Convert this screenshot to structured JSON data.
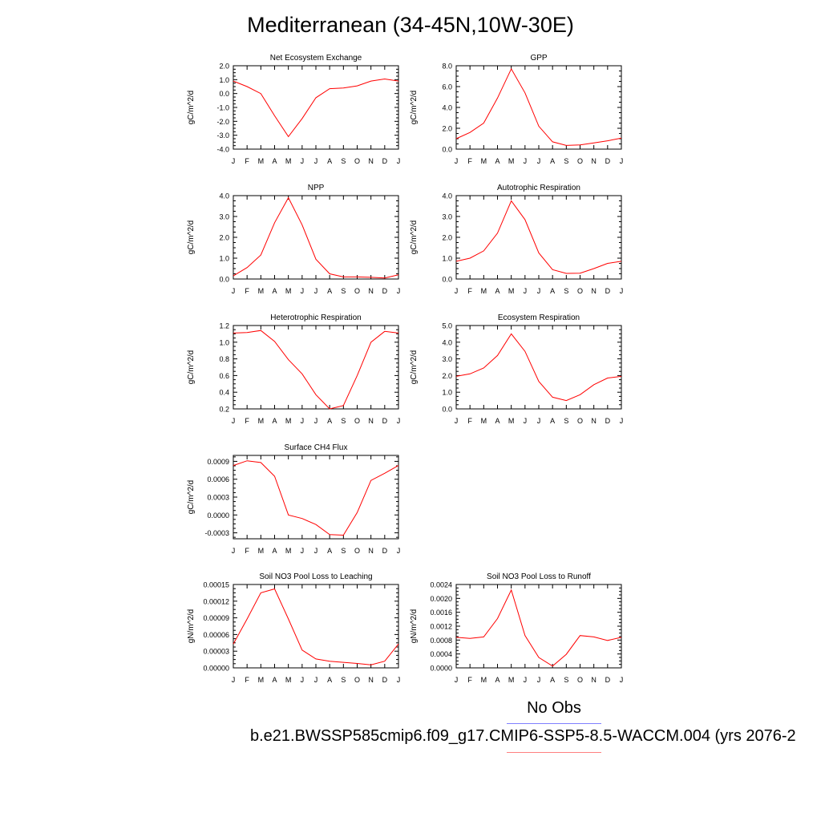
{
  "figure": {
    "title": "Mediterranean (34-45N,10W-30E)",
    "legend": {
      "obs_label": "No Obs",
      "case_label": "b.e21.BWSSP585cmip6.f09_g17.CMIP6-SSP5-8.5-WACCM.004 (yrs 2076-2",
      "obs_color": "#8080ff",
      "case_color": "#ff8080"
    }
  },
  "chart_data": [
    {
      "type": "line",
      "title": "Net Ecosystem Exchange",
      "ylabel": "gC/m^2/d",
      "x": [
        "J",
        "F",
        "M",
        "A",
        "M",
        "J",
        "J",
        "A",
        "S",
        "O",
        "N",
        "D",
        "J"
      ],
      "ylim": [
        -4.0,
        2.0
      ],
      "yticks": [
        "-4.0",
        "-3.0",
        "-2.0",
        "-1.0",
        "0.0",
        "1.0",
        "2.0"
      ],
      "series": [
        {
          "color": "#ff0000",
          "values": [
            0.9,
            0.5,
            0.0,
            -1.6,
            -3.1,
            -1.8,
            -0.3,
            0.35,
            0.4,
            0.55,
            0.9,
            1.05,
            0.9
          ]
        }
      ]
    },
    {
      "type": "line",
      "title": "GPP",
      "ylabel": "gC/m^2/d",
      "x": [
        "J",
        "F",
        "M",
        "A",
        "M",
        "J",
        "J",
        "A",
        "S",
        "O",
        "N",
        "D",
        "J"
      ],
      "ylim": [
        0.0,
        8.0
      ],
      "yticks": [
        "0.0",
        "2.0",
        "4.0",
        "6.0",
        "8.0"
      ],
      "series": [
        {
          "color": "#ff0000",
          "values": [
            1.0,
            1.6,
            2.5,
            4.9,
            7.7,
            5.4,
            2.2,
            0.7,
            0.35,
            0.4,
            0.6,
            0.8,
            1.05
          ]
        }
      ]
    },
    {
      "type": "line",
      "title": "NPP",
      "ylabel": "gC/m^2/d",
      "x": [
        "J",
        "F",
        "M",
        "A",
        "M",
        "J",
        "J",
        "A",
        "S",
        "O",
        "N",
        "D",
        "J"
      ],
      "ylim": [
        0.0,
        4.0
      ],
      "yticks": [
        "0.0",
        "1.0",
        "2.0",
        "3.0",
        "4.0"
      ],
      "series": [
        {
          "color": "#ff0000",
          "values": [
            0.15,
            0.55,
            1.15,
            2.7,
            3.9,
            2.6,
            0.95,
            0.25,
            0.1,
            0.1,
            0.08,
            0.05,
            0.2
          ]
        }
      ]
    },
    {
      "type": "line",
      "title": "Autotrophic Respiration",
      "ylabel": "gC/m^2/d",
      "x": [
        "J",
        "F",
        "M",
        "A",
        "M",
        "J",
        "J",
        "A",
        "S",
        "O",
        "N",
        "D",
        "J"
      ],
      "ylim": [
        0.0,
        4.0
      ],
      "yticks": [
        "0.0",
        "1.0",
        "2.0",
        "3.0",
        "4.0"
      ],
      "series": [
        {
          "color": "#ff0000",
          "values": [
            0.85,
            1.0,
            1.35,
            2.2,
            3.75,
            2.85,
            1.25,
            0.45,
            0.27,
            0.28,
            0.5,
            0.75,
            0.85
          ]
        }
      ]
    },
    {
      "type": "line",
      "title": "Heterotrophic Respiration",
      "ylabel": "gC/m^2/d",
      "x": [
        "J",
        "F",
        "M",
        "A",
        "M",
        "J",
        "J",
        "A",
        "S",
        "O",
        "N",
        "D",
        "J"
      ],
      "ylim": [
        0.2,
        1.2
      ],
      "yticks": [
        "0.2",
        "0.4",
        "0.6",
        "0.8",
        "1.0",
        "1.2"
      ],
      "series": [
        {
          "color": "#ff0000",
          "values": [
            1.11,
            1.115,
            1.14,
            1.01,
            0.79,
            0.62,
            0.37,
            0.2,
            0.24,
            0.6,
            1.0,
            1.13,
            1.11
          ]
        }
      ]
    },
    {
      "type": "line",
      "title": "Ecosystem Respiration",
      "ylabel": "gC/m^2/d",
      "x": [
        "J",
        "F",
        "M",
        "A",
        "M",
        "J",
        "J",
        "A",
        "S",
        "O",
        "N",
        "D",
        "J"
      ],
      "ylim": [
        0.0,
        5.0
      ],
      "yticks": [
        "0.0",
        "1.0",
        "2.0",
        "3.0",
        "4.0",
        "5.0"
      ],
      "series": [
        {
          "color": "#ff0000",
          "values": [
            1.95,
            2.1,
            2.45,
            3.2,
            4.5,
            3.45,
            1.65,
            0.7,
            0.5,
            0.85,
            1.45,
            1.85,
            1.95
          ]
        }
      ]
    },
    {
      "type": "line",
      "title": "Surface CH4 Flux",
      "ylabel": "gC/m^2/d",
      "x": [
        "J",
        "F",
        "M",
        "A",
        "M",
        "J",
        "J",
        "A",
        "S",
        "O",
        "N",
        "D",
        "J"
      ],
      "ylim": [
        -0.0004,
        0.001
      ],
      "yticks": [
        "-0.0003",
        "0.0000",
        "0.0003",
        "0.0006",
        "0.0009"
      ],
      "series": [
        {
          "color": "#ff0000",
          "values": [
            0.00083,
            0.00091,
            0.00088,
            0.00065,
            0.0,
            -6e-05,
            -0.00016,
            -0.00033,
            -0.00034,
            4e-05,
            0.00058,
            0.0007,
            0.00083
          ]
        }
      ]
    },
    {
      "type": "line",
      "title": "Soil NO3 Pool Loss to Leaching",
      "ylabel": "gN/m^2/d",
      "x": [
        "J",
        "F",
        "M",
        "A",
        "M",
        "J",
        "J",
        "A",
        "S",
        "O",
        "N",
        "D",
        "J"
      ],
      "ylim": [
        0.0,
        0.00015
      ],
      "yticks": [
        "0.00000",
        "0.00003",
        "0.00006",
        "0.00009",
        "0.00012",
        "0.00015"
      ],
      "series": [
        {
          "color": "#ff0000",
          "values": [
            4.3e-05,
            8.8e-05,
            0.000135,
            0.000142,
            8.8e-05,
            3.2e-05,
            1.6e-05,
            1.2e-05,
            1e-05,
            8e-06,
            5.5e-06,
            1.2e-05,
            4.3e-05
          ]
        }
      ]
    },
    {
      "type": "line",
      "title": "Soil NO3 Pool Loss to Runoff",
      "ylabel": "gN/m^2/d",
      "x": [
        "J",
        "F",
        "M",
        "A",
        "M",
        "J",
        "J",
        "A",
        "S",
        "O",
        "N",
        "D",
        "J"
      ],
      "ylim": [
        0.0,
        0.0024
      ],
      "yticks": [
        "0.0000",
        "0.0004",
        "0.0008",
        "0.0012",
        "0.0016",
        "0.0020",
        "0.0024"
      ],
      "series": [
        {
          "color": "#ff0000",
          "values": [
            0.00088,
            0.00085,
            0.00089,
            0.00142,
            0.00224,
            0.00093,
            0.0003,
            5e-05,
            0.00039,
            0.00093,
            0.00089,
            0.00079,
            0.00088
          ]
        }
      ]
    }
  ]
}
